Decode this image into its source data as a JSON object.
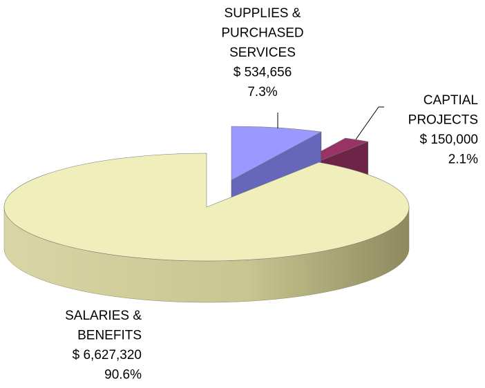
{
  "chart_data": {
    "type": "pie3d",
    "categories": [
      [
        "SUPPLIES &",
        "PURCHASED",
        "SERVICES"
      ],
      [
        "CAPTIAL",
        "PROJECTS"
      ],
      [
        "SALARIES &",
        "BENEFITS"
      ]
    ],
    "values": [
      534656,
      150000,
      6627320
    ],
    "value_labels": [
      "$ 534,656",
      "$ 150,000",
      "$ 6,627,320"
    ],
    "percents": [
      7.3,
      2.1,
      90.6
    ],
    "percent_labels": [
      "7.3%",
      "2.1%",
      "90.6%"
    ],
    "colors": [
      "#9999ff",
      "#993366",
      "#f0eebb"
    ],
    "exploded": [
      true,
      true,
      false
    ]
  }
}
